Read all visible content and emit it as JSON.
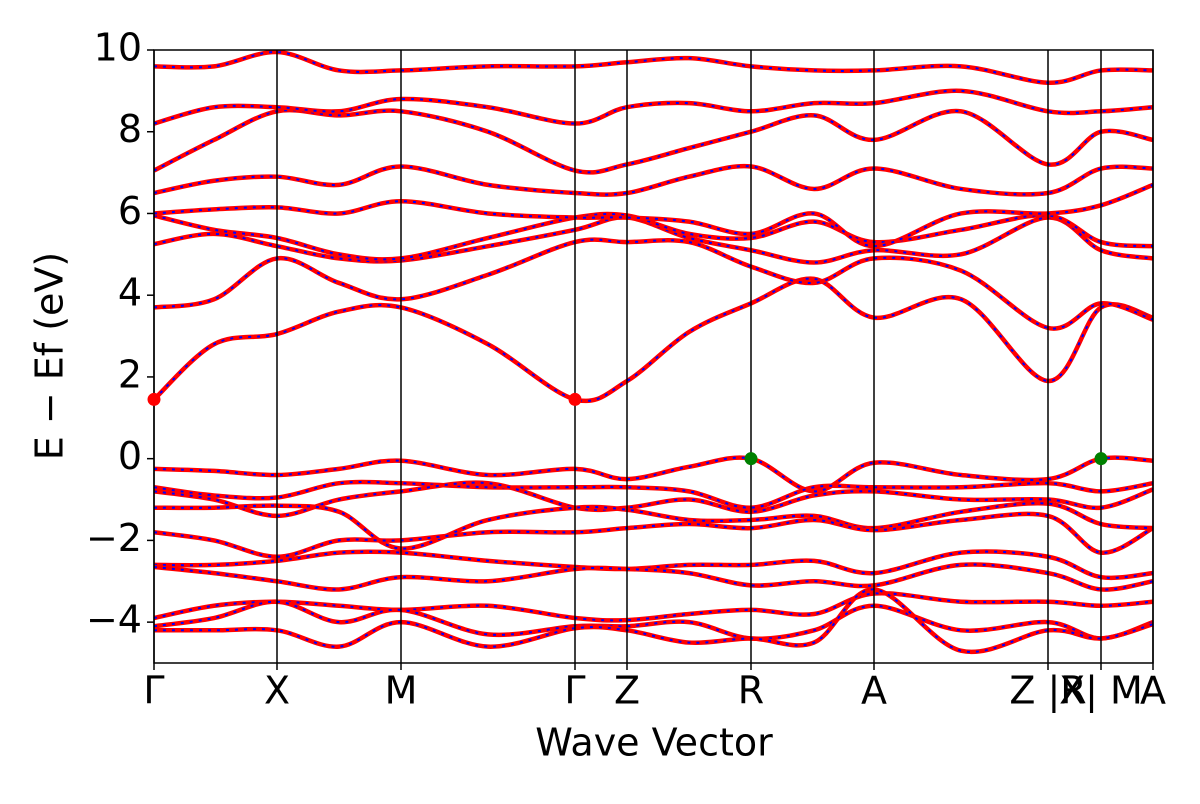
{
  "chart_data": {
    "type": "line",
    "xlabel": "Wave Vector",
    "ylabel": "E − Ef (eV)",
    "xlim": [
      0,
      999
    ],
    "ylim": [
      -5,
      10
    ],
    "xticks": [
      {
        "value": 0,
        "label": "Γ"
      },
      {
        "value": 123,
        "label": "X"
      },
      {
        "value": 247,
        "label": "M"
      },
      {
        "value": 421,
        "label": "Γ"
      },
      {
        "value": 473,
        "label": "Z"
      },
      {
        "value": 597,
        "label": "R"
      },
      {
        "value": 720,
        "label": "A"
      },
      {
        "value": 894,
        "label": "Z |R"
      },
      {
        "value": 947,
        "label": "X| M"
      },
      {
        "value": 999,
        "label": "A"
      }
    ],
    "yticks": [
      {
        "value": -4,
        "label": "−4"
      },
      {
        "value": -2,
        "label": "−2"
      },
      0,
      2,
      4,
      6,
      8,
      10
    ],
    "vertical_lines": true,
    "color": "#ff0000",
    "dash_color": "#0000ff",
    "x": [
      0,
      60,
      123,
      185,
      247,
      334,
      421,
      473,
      535,
      597,
      660,
      720,
      807,
      894,
      947,
      999
    ],
    "bands": [
      [
        1.45,
        2.8,
        3.05,
        3.6,
        3.7,
        2.8,
        1.45,
        1.9,
        3.1,
        3.8,
        4.4,
        3.45,
        3.9,
        1.9,
        3.7,
        3.45
      ],
      [
        3.7,
        3.9,
        4.9,
        4.3,
        3.9,
        4.5,
        5.3,
        5.3,
        5.3,
        4.7,
        4.3,
        4.9,
        4.6,
        3.2,
        3.8,
        3.4
      ],
      [
        5.25,
        5.5,
        5.2,
        4.9,
        4.85,
        5.2,
        5.6,
        5.9,
        5.4,
        5.1,
        4.8,
        5.1,
        5.0,
        5.9,
        5.1,
        4.9
      ],
      [
        5.95,
        5.6,
        5.4,
        5.0,
        4.9,
        5.4,
        5.9,
        5.95,
        5.5,
        5.4,
        5.8,
        5.3,
        5.6,
        5.95,
        5.3,
        5.2
      ],
      [
        6.0,
        6.1,
        6.15,
        6.0,
        6.3,
        6.0,
        5.9,
        5.9,
        5.8,
        5.5,
        6.0,
        5.2,
        6.0,
        6.0,
        6.2,
        6.7
      ],
      [
        6.5,
        6.8,
        6.9,
        6.7,
        7.15,
        6.7,
        6.5,
        6.5,
        6.9,
        7.15,
        6.6,
        7.1,
        6.6,
        6.5,
        7.1,
        7.1
      ],
      [
        7.05,
        7.8,
        8.5,
        8.4,
        8.5,
        8.0,
        7.05,
        7.2,
        7.6,
        8.0,
        8.4,
        7.8,
        8.5,
        7.2,
        8.0,
        7.8
      ],
      [
        8.2,
        8.6,
        8.6,
        8.5,
        8.8,
        8.6,
        8.2,
        8.6,
        8.7,
        8.5,
        8.7,
        8.7,
        9.0,
        8.5,
        8.5,
        8.6
      ],
      [
        9.6,
        9.6,
        9.95,
        9.5,
        9.5,
        9.6,
        9.6,
        9.7,
        9.8,
        9.6,
        9.5,
        9.5,
        9.6,
        9.2,
        9.5,
        9.5
      ],
      [
        -0.25,
        -0.3,
        -0.4,
        -0.25,
        -0.05,
        -0.4,
        -0.25,
        -0.5,
        -0.2,
        0.0,
        -0.8,
        -0.1,
        -0.4,
        -0.5,
        0.0,
        -0.05
      ],
      [
        -0.7,
        -0.9,
        -0.95,
        -0.6,
        -0.6,
        -0.7,
        -0.7,
        -0.7,
        -0.8,
        -1.2,
        -0.7,
        -0.7,
        -0.7,
        -0.6,
        -0.8,
        -0.6
      ],
      [
        -0.8,
        -1.0,
        -1.4,
        -1.0,
        -0.8,
        -0.6,
        -1.2,
        -1.2,
        -1.0,
        -1.3,
        -0.9,
        -0.8,
        -1.0,
        -1.0,
        -1.2,
        -0.75
      ],
      [
        -1.2,
        -1.2,
        -1.15,
        -1.3,
        -2.2,
        -1.5,
        -1.2,
        -1.25,
        -1.5,
        -1.5,
        -1.4,
        -1.7,
        -1.3,
        -1.1,
        -1.6,
        -1.7
      ],
      [
        -1.8,
        -2.0,
        -2.4,
        -2.0,
        -2.0,
        -1.8,
        -1.8,
        -1.7,
        -1.6,
        -1.7,
        -1.5,
        -1.75,
        -1.5,
        -1.4,
        -2.3,
        -1.7
      ],
      [
        -2.6,
        -2.6,
        -2.5,
        -2.3,
        -2.3,
        -2.5,
        -2.65,
        -2.7,
        -2.6,
        -2.6,
        -2.5,
        -2.8,
        -2.3,
        -2.4,
        -2.9,
        -2.8
      ],
      [
        -2.65,
        -2.8,
        -3.0,
        -3.2,
        -2.9,
        -3.0,
        -2.7,
        -2.7,
        -2.8,
        -3.1,
        -3.0,
        -3.1,
        -2.6,
        -2.8,
        -3.2,
        -3.0
      ],
      [
        -3.9,
        -3.6,
        -3.5,
        -3.6,
        -3.7,
        -3.6,
        -3.9,
        -3.95,
        -3.8,
        -3.7,
        -3.8,
        -3.3,
        -3.5,
        -3.5,
        -3.6,
        -3.5
      ],
      [
        -4.1,
        -3.9,
        -3.5,
        -4.0,
        -3.7,
        -4.3,
        -4.1,
        -4.1,
        -4.0,
        -4.4,
        -4.2,
        -3.6,
        -4.2,
        -4.0,
        -4.4,
        -4.0
      ],
      [
        -4.2,
        -4.2,
        -4.2,
        -4.6,
        -4.0,
        -4.6,
        -4.15,
        -4.2,
        -4.5,
        -4.4,
        -4.5,
        -3.2,
        -4.7,
        -4.2,
        -4.4,
        -4.05
      ]
    ],
    "cbm": {
      "x": [
        0,
        421
      ],
      "values": [
        1.45,
        1.45
      ],
      "color": "#ff0000"
    },
    "vbm": {
      "x": [
        597,
        947
      ],
      "values": [
        0,
        0
      ],
      "color": "#008000"
    }
  }
}
